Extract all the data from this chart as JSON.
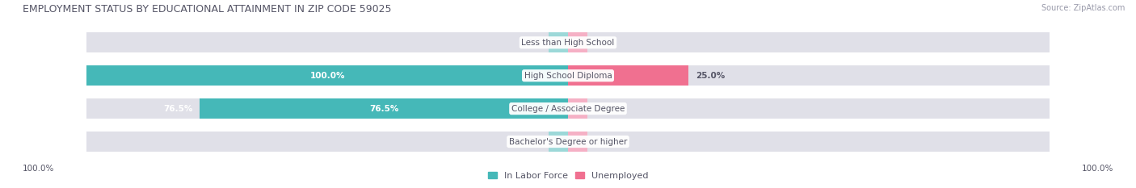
{
  "title": "EMPLOYMENT STATUS BY EDUCATIONAL ATTAINMENT IN ZIP CODE 59025",
  "source": "Source: ZipAtlas.com",
  "categories": [
    "Less than High School",
    "High School Diploma",
    "College / Associate Degree",
    "Bachelor's Degree or higher"
  ],
  "labor_force": [
    0.0,
    100.0,
    76.5,
    0.0
  ],
  "unemployed": [
    0.0,
    25.0,
    0.0,
    0.0
  ],
  "labor_force_color": "#45b8b8",
  "unemployed_color": "#f07090",
  "bar_bg_left_color": "#e0e0e8",
  "bar_bg_right_color": "#ededf2",
  "title_color": "#555566",
  "text_color": "#555566",
  "source_color": "#999aaa",
  "bg_color": "#ffffff",
  "max_val": 100.0,
  "legend_lf": "In Labor Force",
  "legend_un": "Unemployed",
  "axis_label_left": "100.0%",
  "axis_label_right": "100.0%",
  "lf_label_color_large": "#ffffff",
  "lf_label_color_small": "#555566",
  "stub_color_lf": "#9cd8d8",
  "stub_color_un": "#f5b0c5"
}
